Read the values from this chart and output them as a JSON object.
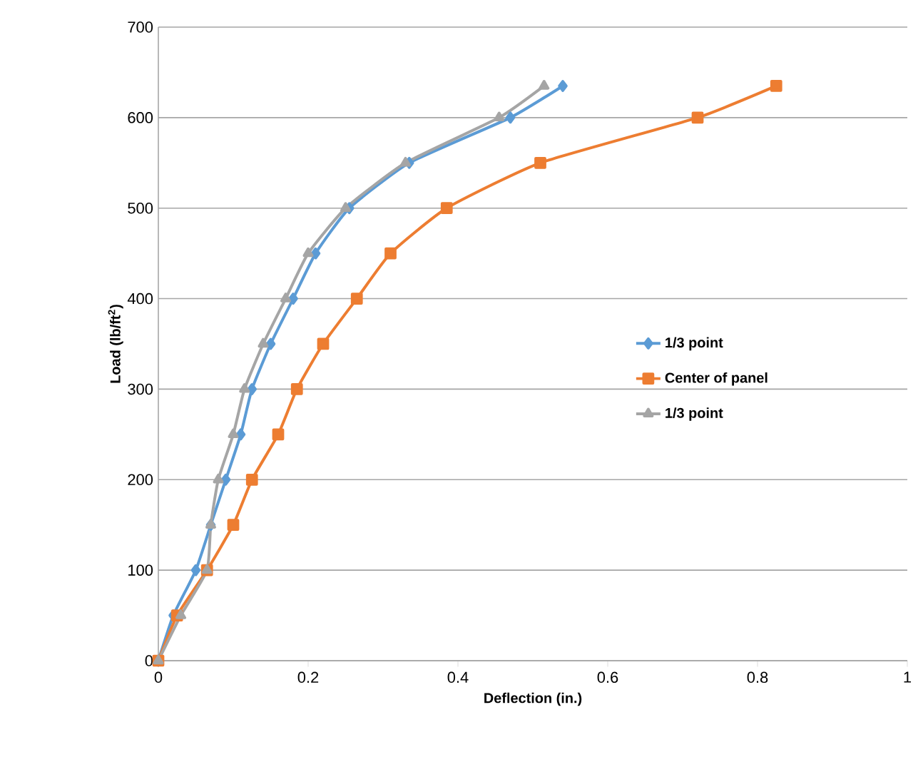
{
  "chart_data": {
    "type": "line",
    "xlabel": "Deflection (in.)",
    "ylabel": "Load (lb/ft$^{2}$)",
    "xlim": [
      0,
      1
    ],
    "xticks": [
      0,
      0.2,
      0.4,
      0.6,
      0.8,
      1
    ],
    "ylim": [
      0,
      700
    ],
    "yticks": [
      0,
      100,
      200,
      300,
      400,
      500,
      600,
      700
    ],
    "grid": "y",
    "legend": "right",
    "line_style": "solid",
    "series": [
      {
        "name": "1/3 point",
        "color": "#5b9bd5",
        "marker": "diamond",
        "x": [
          0,
          0.02,
          0.05,
          0.07,
          0.09,
          0.11,
          0.125,
          0.15,
          0.18,
          0.21,
          0.255,
          0.335,
          0.47,
          0.54
        ],
        "values": [
          0,
          50,
          100,
          150,
          200,
          250,
          300,
          350,
          400,
          450,
          500,
          550,
          600,
          635
        ]
      },
      {
        "name": "Center of panel",
        "color": "#ed7d31",
        "marker": "square",
        "x": [
          0,
          0.025,
          0.065,
          0.1,
          0.125,
          0.16,
          0.185,
          0.22,
          0.265,
          0.31,
          0.385,
          0.51,
          0.72,
          0.825
        ],
        "values": [
          0,
          50,
          100,
          150,
          200,
          250,
          300,
          350,
          400,
          450,
          500,
          550,
          600,
          635
        ]
      },
      {
        "name": "1/3 point",
        "color": "#a5a5a5",
        "marker": "triangle",
        "x": [
          0,
          0.03,
          0.065,
          0.07,
          0.08,
          0.1,
          0.115,
          0.14,
          0.17,
          0.2,
          0.25,
          0.33,
          0.455,
          0.515
        ],
        "values": [
          0,
          50,
          100,
          150,
          200,
          250,
          300,
          350,
          400,
          450,
          500,
          550,
          600,
          635
        ]
      }
    ]
  }
}
